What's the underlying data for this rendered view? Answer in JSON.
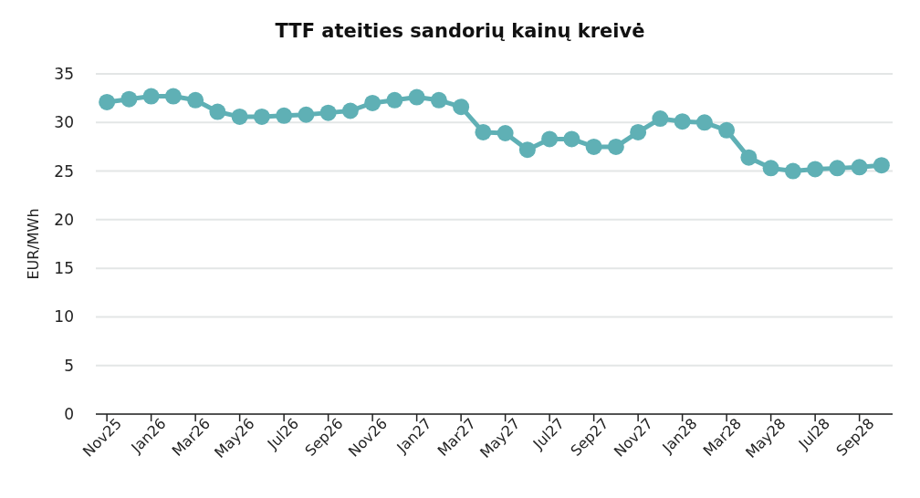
{
  "chart_data": {
    "type": "line",
    "title": "TTF ateities sandorių kainų kreivė",
    "ylabel": "EUR/MWh",
    "categories": [
      "Nov25",
      null,
      "Jan26",
      null,
      "Mar26",
      null,
      "May26",
      null,
      "Jul26",
      null,
      "Sep26",
      null,
      "Nov26",
      null,
      "Jan27",
      null,
      "Mar27",
      null,
      "May27",
      null,
      "Jul27",
      null,
      "Sep27",
      null,
      "Nov27",
      null,
      "Jan28",
      null,
      "Mar28",
      null,
      "May28",
      null,
      "Jul28",
      null,
      "Sep28",
      null
    ],
    "series": [
      {
        "color": "#5fb0b5",
        "values": [
          32.1,
          32.4,
          32.7,
          32.7,
          32.3,
          31.1,
          30.6,
          30.6,
          30.7,
          30.8,
          31.0,
          31.2,
          32.0,
          32.3,
          32.6,
          32.3,
          31.6,
          29.0,
          28.9,
          27.2,
          28.3,
          28.3,
          27.5,
          27.5,
          29.0,
          30.4,
          30.1,
          30.0,
          29.2,
          26.4,
          25.3,
          25.0,
          25.2,
          25.3,
          25.4,
          25.6
        ]
      }
    ],
    "ylim": [
      0,
      35
    ],
    "yticks": [
      0,
      5,
      10,
      15,
      20,
      25,
      30,
      35
    ],
    "grid": "y",
    "marker": "circle",
    "line_style": "solid"
  }
}
